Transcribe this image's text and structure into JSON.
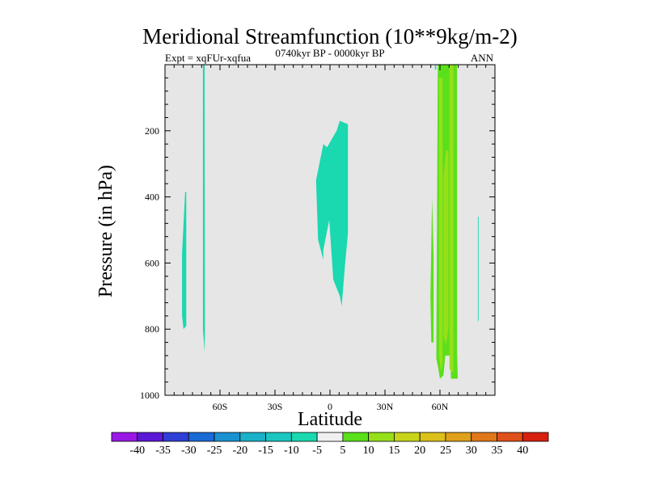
{
  "chart_data": {
    "type": "contour",
    "title": "Meridional Streamfunction (10**9kg/m-2)",
    "left_subtitle": "Expt = xqFUr-xqfua",
    "center_subtitle": "0740kyr BP - 0000kyr BP",
    "right_subtitle": "ANN",
    "xlabel": "Latitude",
    "ylabel": "Pressure (in hPa)",
    "xlim": [
      -90,
      90
    ],
    "ylim": [
      1000,
      0
    ],
    "x_ticks": [
      {
        "value": -60,
        "label": "60S"
      },
      {
        "value": -30,
        "label": "30S"
      },
      {
        "value": 0,
        "label": "0"
      },
      {
        "value": 30,
        "label": "30N"
      },
      {
        "value": 60,
        "label": "60N"
      }
    ],
    "y_ticks": [
      {
        "value": 200,
        "label": "200"
      },
      {
        "value": 400,
        "label": "400"
      },
      {
        "value": 600,
        "label": "600"
      },
      {
        "value": 800,
        "label": "800"
      },
      {
        "value": 1000,
        "label": "1000"
      }
    ],
    "background_color": "#e6e6e6",
    "colorbar": {
      "labels": [
        "-40",
        "-35",
        "-30",
        "-25",
        "-20",
        "-15",
        "-10",
        "-5",
        "5",
        "10",
        "15",
        "20",
        "25",
        "30",
        "35",
        "40"
      ],
      "colors": [
        "#9a18e6",
        "#5a18d6",
        "#2e3ed6",
        "#1a6ad6",
        "#1a92d2",
        "#1ab0c8",
        "#1ac6c0",
        "#1ad8b0",
        "#f0f0f0",
        "#5ae01a",
        "#96e01a",
        "#c8d41a",
        "#dcc01a",
        "#e0a01a",
        "#e0781a",
        "#e0501a",
        "#d82010"
      ]
    },
    "regions": [
      {
        "name": "southern-polar-negative",
        "level": -5,
        "color": "#1ad8b0",
        "points": [
          [
            -80.7,
            570
          ],
          [
            -79.0,
            385
          ],
          [
            -78.4,
            385
          ],
          [
            -78.4,
            790
          ],
          [
            -79.9,
            800
          ],
          [
            -80.7,
            760
          ]
        ]
      },
      {
        "name": "southern-narrow-negative",
        "level": -5,
        "color": "#1ad8b0",
        "points": [
          [
            -69.3,
            0
          ],
          [
            -68.4,
            0
          ],
          [
            -68.2,
            800
          ],
          [
            -68.4,
            870
          ],
          [
            -69.3,
            800
          ]
        ]
      },
      {
        "name": "equatorial-negative",
        "level": -5,
        "color": "#1ad8b0",
        "points": [
          [
            -7.6,
            350
          ],
          [
            -3.6,
            240
          ],
          [
            -1.6,
            250
          ],
          [
            3.6,
            200
          ],
          [
            5.4,
            170
          ],
          [
            9.8,
            180
          ],
          [
            9.8,
            510
          ],
          [
            8.3,
            600
          ],
          [
            6.4,
            730
          ],
          [
            5.4,
            700
          ],
          [
            1.8,
            650
          ],
          [
            -0.4,
            470
          ],
          [
            -3.6,
            560
          ],
          [
            -3.6,
            590
          ],
          [
            -6.5,
            530
          ]
        ]
      },
      {
        "name": "northern-weak-right",
        "level": -5,
        "color": "#1ad8b0",
        "points": [
          [
            80.7,
            460
          ],
          [
            81.1,
            460
          ],
          [
            81.1,
            770
          ],
          [
            80.7,
            780
          ]
        ]
      },
      {
        "name": "north-positive-left",
        "level": 5,
        "color": "#5ae01a",
        "points": [
          [
            54.8,
            700
          ],
          [
            55.7,
            400
          ],
          [
            56.5,
            580
          ],
          [
            56.5,
            840
          ],
          [
            55.3,
            840
          ]
        ]
      },
      {
        "name": "north-positive-main",
        "level": 5,
        "color": "#5ae01a",
        "points": [
          [
            58.8,
            0
          ],
          [
            61.9,
            0
          ],
          [
            64.8,
            0
          ],
          [
            68.4,
            0
          ],
          [
            69.3,
            0
          ],
          [
            69.3,
            860
          ],
          [
            69.7,
            950
          ],
          [
            66.0,
            950
          ],
          [
            65.7,
            880
          ],
          [
            62.9,
            880
          ],
          [
            61.9,
            940
          ],
          [
            60.0,
            950
          ],
          [
            58.8,
            910
          ],
          [
            58.0,
            890
          ]
        ]
      },
      {
        "name": "north-positive-10-left",
        "level": 10,
        "color": "#96e01a",
        "points": [
          [
            59.5,
            40
          ],
          [
            61.4,
            40
          ],
          [
            61.4,
            900
          ],
          [
            60.5,
            930
          ],
          [
            59.5,
            880
          ]
        ]
      },
      {
        "name": "north-positive-10-right",
        "level": 10,
        "color": "#96e01a",
        "points": [
          [
            65.2,
            0
          ],
          [
            67.3,
            0
          ],
          [
            67.3,
            930
          ],
          [
            66.4,
            930
          ],
          [
            65.2,
            920
          ]
        ]
      },
      {
        "name": "north-positive-10-mid",
        "level": 10,
        "color": "#96e01a",
        "points": [
          [
            61.9,
            340
          ],
          [
            63.3,
            260
          ],
          [
            64.6,
            260
          ],
          [
            64.6,
            800
          ],
          [
            63.3,
            850
          ],
          [
            61.9,
            820
          ]
        ]
      }
    ],
    "lines": [
      {
        "name": "north-negative-line",
        "level": -5,
        "color": "#1ad8b0",
        "x": 57.6,
        "p_top": 0,
        "p_bottom": 15
      }
    ]
  }
}
